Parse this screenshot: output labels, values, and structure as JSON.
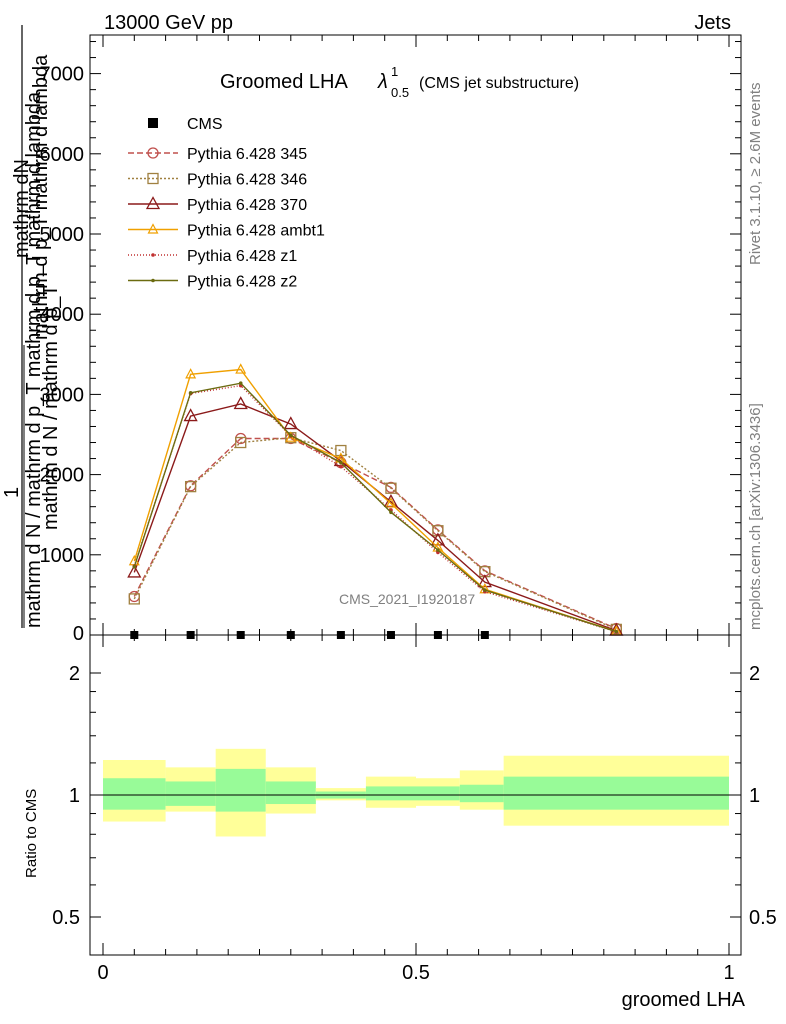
{
  "header": {
    "energy_label": "13000 GeV pp",
    "category_label": "Jets"
  },
  "side": {
    "rivet_label": "Rivet 3.1.10, ≥ 2.6M events",
    "mcplots_label": "mcplots.cern.ch [arXiv:1306.3436]"
  },
  "watermark": "CMS_2021_I1920187",
  "chart_data": [
    {
      "type": "line",
      "title_main": "Groomed LHA",
      "title_lambda": "λ",
      "title_sup": "1",
      "title_sub": "0.5",
      "title_note": "(CMS jet substructure)",
      "ylabel_fraction_numerator_one": "1",
      "ylabel_numerator": "mathrm d^{2}N",
      "ylabel_numerator_text": "mathrm dN",
      "ylabel_denominator": "mathrm d N / mathrm d p_T mathrm d p_T mathrm d lambda",
      "ylabel_line_a": "mathrm d p_T mathrm d lambda",
      "ylabel_line_b": "mathrm d N / mathrm d p_T",
      "xlim": [
        0,
        1
      ],
      "ylim": [
        0,
        7500
      ],
      "yticks": [
        0,
        1000,
        2000,
        3000,
        4000,
        5000,
        6000,
        7000
      ],
      "ytick_labels": [
        "0",
        "1000",
        "2000",
        "3000",
        "4000",
        "5000",
        "6000",
        "7000"
      ],
      "ytick_labels_visible": [
        "0",
        "1000",
        "2000",
        "3000",
        "4000",
        "5000",
        "6000",
        "7000"
      ],
      "x": [
        0.05,
        0.14,
        0.22,
        0.3,
        0.38,
        0.46,
        0.535,
        0.61,
        0.82
      ],
      "data": {
        "name": "CMS",
        "x": [
          0.05,
          0.14,
          0.22,
          0.3,
          0.38,
          0.46,
          0.535,
          0.61
        ],
        "values": [
          0,
          0,
          0,
          0,
          0,
          0,
          0,
          0
        ]
      },
      "series": [
        {
          "name": "Pythia 6.428 345",
          "color": "#c0504d",
          "dash": "6,3",
          "marker": "circle",
          "values": [
            480,
            1860,
            2450,
            2450,
            2150,
            1840,
            1310,
            800,
            80
          ]
        },
        {
          "name": "Pythia 6.428 346",
          "color": "#a08040",
          "dash": "2,2",
          "marker": "square",
          "values": [
            450,
            1850,
            2400,
            2460,
            2300,
            1830,
            1300,
            790,
            70
          ]
        },
        {
          "name": "Pythia 6.428 370",
          "color": "#8b1a1a",
          "dash": "",
          "marker": "triangle",
          "values": [
            780,
            2730,
            2880,
            2630,
            2170,
            1660,
            1180,
            660,
            55
          ]
        },
        {
          "name": "Pythia 6.428 ambt1",
          "color": "#f0a000",
          "dash": "",
          "marker": "triangle-small",
          "values": [
            920,
            3250,
            3310,
            2460,
            2200,
            1640,
            1090,
            570,
            45
          ]
        },
        {
          "name": "Pythia 6.428 z1",
          "color": "#c03030",
          "dash": "1,2",
          "marker": "dot",
          "values": [
            860,
            3010,
            3110,
            2480,
            2100,
            1560,
            1030,
            540,
            40
          ]
        },
        {
          "name": "Pythia 6.428 z2",
          "color": "#6b6b10",
          "dash": "",
          "marker": "dot",
          "values": [
            850,
            3020,
            3140,
            2490,
            2150,
            1530,
            1060,
            560,
            42
          ]
        }
      ],
      "legend_location": "top-left"
    },
    {
      "type": "area",
      "ylabel": "Ratio to CMS",
      "xlabel": "groomed LHA",
      "xlim": [
        0,
        1
      ],
      "ylim": [
        0.4,
        2.3
      ],
      "yticks": [
        0.5,
        1,
        2
      ],
      "ytick_labels": [
        "0.5",
        "1",
        "2"
      ],
      "xticks": [
        0,
        0.5,
        1
      ],
      "xtick_labels": [
        "0",
        "0.5",
        "1"
      ],
      "bins": [
        {
          "x0": 0.0,
          "x1": 0.1,
          "stat": [
            0.92,
            1.1
          ],
          "total": [
            0.86,
            1.22
          ]
        },
        {
          "x0": 0.1,
          "x1": 0.18,
          "stat": [
            0.94,
            1.08
          ],
          "total": [
            0.91,
            1.17
          ]
        },
        {
          "x0": 0.18,
          "x1": 0.26,
          "stat": [
            0.91,
            1.16
          ],
          "total": [
            0.79,
            1.3
          ]
        },
        {
          "x0": 0.26,
          "x1": 0.34,
          "stat": [
            0.95,
            1.08
          ],
          "total": [
            0.9,
            1.17
          ]
        },
        {
          "x0": 0.34,
          "x1": 0.42,
          "stat": [
            0.98,
            1.02
          ],
          "total": [
            0.97,
            1.04
          ]
        },
        {
          "x0": 0.42,
          "x1": 0.5,
          "stat": [
            0.97,
            1.05
          ],
          "total": [
            0.93,
            1.11
          ]
        },
        {
          "x0": 0.5,
          "x1": 0.57,
          "stat": [
            0.97,
            1.05
          ],
          "total": [
            0.94,
            1.1
          ]
        },
        {
          "x0": 0.57,
          "x1": 0.64,
          "stat": [
            0.96,
            1.06
          ],
          "total": [
            0.92,
            1.15
          ]
        },
        {
          "x0": 0.64,
          "x1": 1.0,
          "stat": [
            0.92,
            1.11
          ],
          "total": [
            0.84,
            1.25
          ]
        }
      ],
      "colors": {
        "stat": "#98fb98",
        "total": "#ffff99"
      }
    }
  ]
}
